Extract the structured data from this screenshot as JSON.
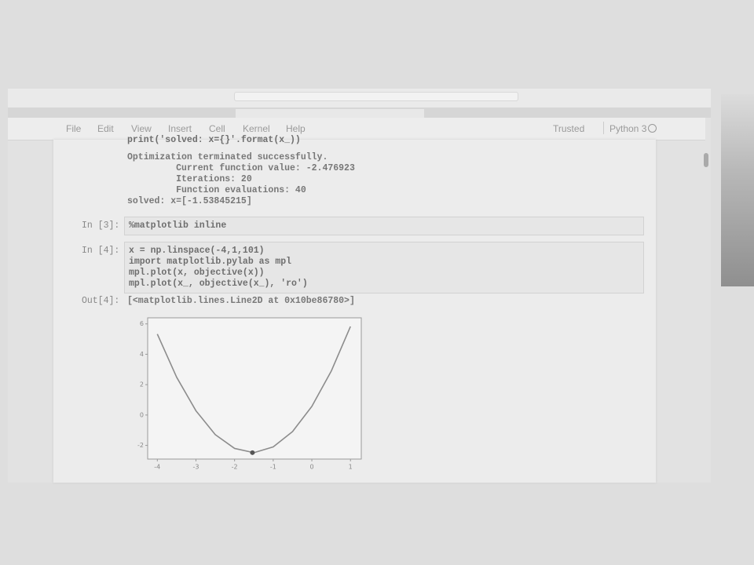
{
  "menu": [
    "File",
    "Edit",
    "View",
    "Insert",
    "Cell",
    "Kernel",
    "Help"
  ],
  "status": {
    "trusted": "Trusted",
    "kernel": "Python 3"
  },
  "cells": [
    {
      "code": [
        "print('solved: x={}'.format(x_))"
      ],
      "output": [
        "Optimization terminated successfully.",
        "         Current function value: -2.476923",
        "         Iterations: 20",
        "         Function evaluations: 40",
        "solved: x=[-1.53845215]"
      ]
    },
    {
      "prompt": "In [3]:",
      "code": [
        "%matplotlib inline"
      ]
    },
    {
      "prompt": "In [4]:",
      "code": [
        "x = np.linspace(-4,1,101)",
        "import matplotlib.pylab as mpl",
        "mpl.plot(x, objective(x))",
        "mpl.plot(x_, objective(x_), 'ro')"
      ],
      "out_prompt": "Out[4]:",
      "output": [
        "[<matplotlib.lines.Line2D at 0x10be86780>]"
      ]
    }
  ],
  "plot": {
    "type": "line",
    "x": [
      -4,
      -3.5,
      -3,
      -2.5,
      -2,
      -1.5,
      -1,
      -0.5,
      0,
      0.5,
      1
    ],
    "series": [
      {
        "color": "#8c8c8c",
        "values": [
          5.33,
          2.49,
          0.28,
          -1.29,
          -2.2,
          -2.48,
          -2.1,
          -1.09,
          0.57,
          2.88,
          5.83
        ]
      }
    ],
    "marker": {
      "x": -1.538,
      "y": -2.477,
      "color": "#555555"
    },
    "xlim": [
      -4.25,
      1.28
    ],
    "ylim": [
      -2.9,
      6.4
    ],
    "xticks": [
      -4,
      -3,
      -2,
      -1,
      0,
      1
    ],
    "yticks": [
      -2,
      0,
      2,
      4,
      6
    ]
  }
}
